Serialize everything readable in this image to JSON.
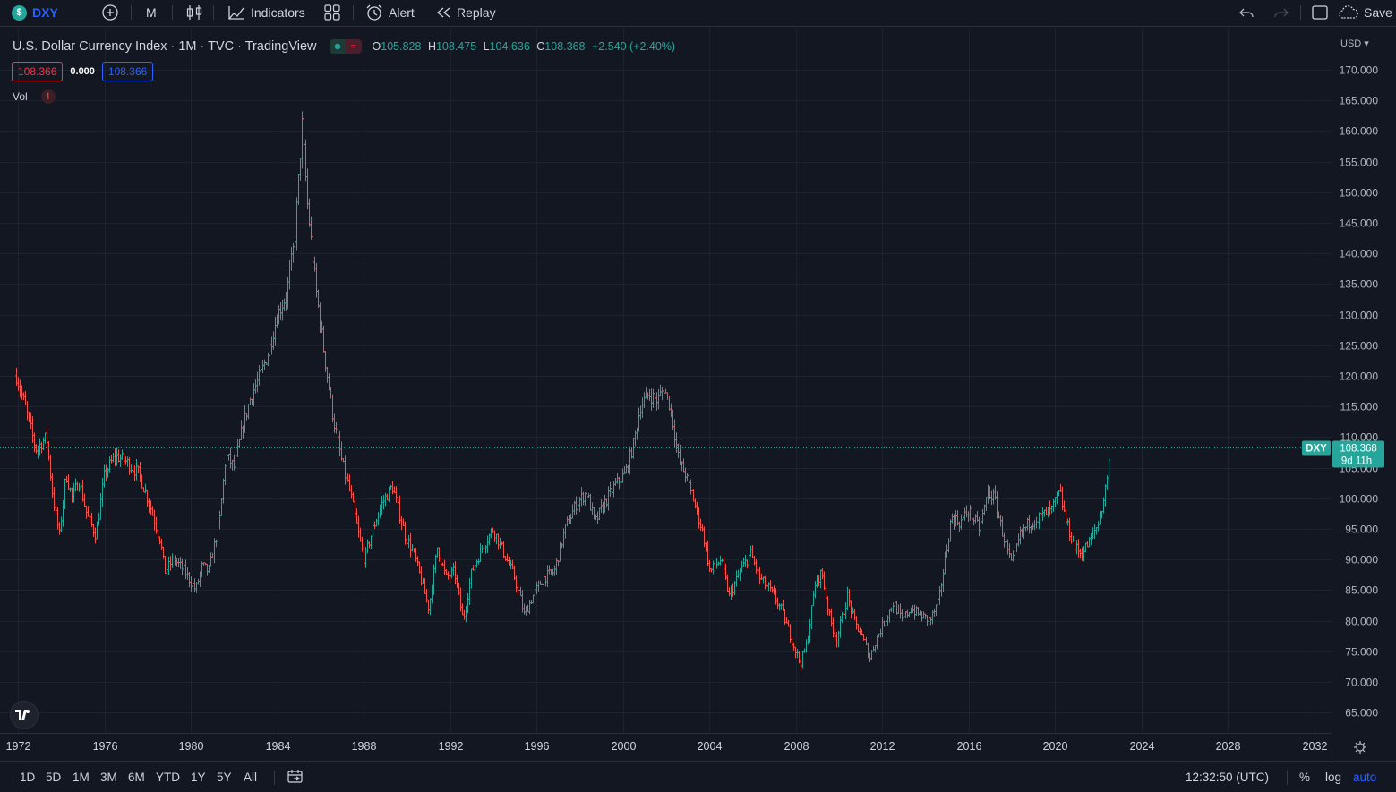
{
  "toolbar": {
    "symbol": "DXY",
    "symbol_badge": "$",
    "interval": "M",
    "indicators_label": "Indicators",
    "alert_label": "Alert",
    "replay_label": "Replay",
    "save_label": "Save"
  },
  "legend": {
    "title": "U.S. Dollar Currency Index · 1M · TVC · TradingView",
    "o_label": "O",
    "o_value": "105.828",
    "h_label": "H",
    "h_value": "108.475",
    "l_label": "L",
    "l_value": "104.636",
    "c_label": "C",
    "c_value": "108.368",
    "change": "+2.540 (+2.40%)",
    "bid": "108.366",
    "spread": "0.000",
    "ask": "108.366",
    "vol_label": "Vol",
    "vol_warning": "!"
  },
  "price_axis": {
    "currency": "USD",
    "ticks": [
      "170.000",
      "165.000",
      "160.000",
      "155.000",
      "150.000",
      "145.000",
      "140.000",
      "135.000",
      "130.000",
      "125.000",
      "120.000",
      "115.000",
      "110.000",
      "105.000",
      "100.000",
      "95.000",
      "90.000",
      "85.000",
      "80.000",
      "75.000",
      "70.000",
      "65.000"
    ],
    "last_symbol": "DXY",
    "last_price": "108.368",
    "countdown": "9d 11h"
  },
  "time_axis": {
    "ticks": [
      "1972",
      "1976",
      "1980",
      "1984",
      "1988",
      "1992",
      "1996",
      "2000",
      "2004",
      "2008",
      "2012",
      "2016",
      "2020",
      "2024",
      "2028",
      "2032"
    ]
  },
  "bottombar": {
    "ranges": [
      "1D",
      "5D",
      "1M",
      "3M",
      "6M",
      "YTD",
      "1Y",
      "5Y",
      "All"
    ],
    "clock": "12:32:50 (UTC)",
    "percent": "%",
    "log": "log",
    "auto": "auto"
  },
  "colors": {
    "up": "#26a69a",
    "down": "#ef5350",
    "bg": "#131722",
    "accent": "#2962ff"
  },
  "chart_data": {
    "type": "line",
    "title": "U.S. Dollar Currency Index",
    "xlabel": "",
    "ylabel": "",
    "ylim": [
      62.5,
      172.5
    ],
    "x_range": [
      1971.9,
      2033.5
    ],
    "series": [
      {
        "points": [
          [
            1971.9,
            120
          ],
          [
            1972.3,
            115
          ],
          [
            1972.8,
            108
          ],
          [
            1973.3,
            110
          ],
          [
            1973.6,
            100
          ],
          [
            1973.9,
            94
          ],
          [
            1974.2,
            104
          ],
          [
            1974.5,
            100
          ],
          [
            1974.8,
            103
          ],
          [
            1975.2,
            97
          ],
          [
            1975.6,
            94
          ],
          [
            1976.0,
            104
          ],
          [
            1976.5,
            107
          ],
          [
            1977.0,
            106
          ],
          [
            1977.6,
            104
          ],
          [
            1978.1,
            99
          ],
          [
            1978.6,
            93
          ],
          [
            1978.8,
            88
          ],
          [
            1979.2,
            90
          ],
          [
            1979.7,
            88
          ],
          [
            1980.2,
            85
          ],
          [
            1980.5,
            89
          ],
          [
            1980.8,
            88
          ],
          [
            1981.3,
            96
          ],
          [
            1981.6,
            107
          ],
          [
            1982.0,
            105
          ],
          [
            1982.4,
            112
          ],
          [
            1982.8,
            117
          ],
          [
            1983.2,
            120
          ],
          [
            1983.6,
            124
          ],
          [
            1984.0,
            130
          ],
          [
            1984.4,
            133
          ],
          [
            1984.8,
            142
          ],
          [
            1985.15,
            161
          ],
          [
            1985.4,
            148
          ],
          [
            1985.8,
            134
          ],
          [
            1986.2,
            123
          ],
          [
            1986.6,
            113
          ],
          [
            1987.0,
            106
          ],
          [
            1987.4,
            100
          ],
          [
            1987.8,
            93
          ],
          [
            1988.0,
            90
          ],
          [
            1988.4,
            95
          ],
          [
            1988.8,
            99
          ],
          [
            1989.3,
            102
          ],
          [
            1989.6,
            98
          ],
          [
            1989.9,
            94
          ],
          [
            1990.3,
            91
          ],
          [
            1990.7,
            86
          ],
          [
            1991.0,
            82
          ],
          [
            1991.4,
            92
          ],
          [
            1991.8,
            87
          ],
          [
            1992.2,
            88
          ],
          [
            1992.6,
            80
          ],
          [
            1993.0,
            88
          ],
          [
            1993.5,
            92
          ],
          [
            1994.0,
            95
          ],
          [
            1994.5,
            91
          ],
          [
            1995.0,
            87
          ],
          [
            1995.4,
            81
          ],
          [
            1995.8,
            84
          ],
          [
            1996.3,
            87
          ],
          [
            1996.8,
            88
          ],
          [
            1997.3,
            95
          ],
          [
            1997.8,
            99
          ],
          [
            1998.3,
            101
          ],
          [
            1998.7,
            96
          ],
          [
            1999.1,
            99
          ],
          [
            1999.6,
            102
          ],
          [
            2000.1,
            104
          ],
          [
            2000.5,
            109
          ],
          [
            2000.8,
            115
          ],
          [
            2001.2,
            117
          ],
          [
            2001.6,
            116
          ],
          [
            2001.9,
            118
          ],
          [
            2002.2,
            115
          ],
          [
            2002.6,
            106
          ],
          [
            2002.9,
            104
          ],
          [
            2003.3,
            99
          ],
          [
            2003.7,
            94
          ],
          [
            2004.0,
            88
          ],
          [
            2004.5,
            90
          ],
          [
            2004.9,
            84
          ],
          [
            2005.4,
            88
          ],
          [
            2005.9,
            91
          ],
          [
            2006.3,
            87
          ],
          [
            2006.8,
            85
          ],
          [
            2007.3,
            82
          ],
          [
            2007.8,
            77
          ],
          [
            2008.2,
            73
          ],
          [
            2008.5,
            76
          ],
          [
            2008.9,
            86
          ],
          [
            2009.2,
            88
          ],
          [
            2009.6,
            80
          ],
          [
            2009.9,
            77
          ],
          [
            2010.4,
            84
          ],
          [
            2010.7,
            80
          ],
          [
            2011.0,
            78
          ],
          [
            2011.4,
            74
          ],
          [
            2011.7,
            77
          ],
          [
            2012.1,
            80
          ],
          [
            2012.5,
            83
          ],
          [
            2012.9,
            80
          ],
          [
            2013.3,
            82
          ],
          [
            2013.7,
            81
          ],
          [
            2014.2,
            80
          ],
          [
            2014.6,
            83
          ],
          [
            2014.9,
            90
          ],
          [
            2015.2,
            97
          ],
          [
            2015.6,
            96
          ],
          [
            2016.0,
            98
          ],
          [
            2016.5,
            95
          ],
          [
            2016.9,
            101
          ],
          [
            2017.2,
            100
          ],
          [
            2017.6,
            94
          ],
          [
            2018.0,
            89
          ],
          [
            2018.4,
            94
          ],
          [
            2018.8,
            96
          ],
          [
            2019.3,
            97
          ],
          [
            2019.8,
            98
          ],
          [
            2020.2,
            101
          ],
          [
            2020.5,
            96
          ],
          [
            2020.9,
            92
          ],
          [
            2021.2,
            91
          ],
          [
            2021.6,
            93
          ],
          [
            2022.0,
            96
          ],
          [
            2022.3,
            101
          ],
          [
            2022.55,
            108
          ]
        ]
      }
    ]
  }
}
